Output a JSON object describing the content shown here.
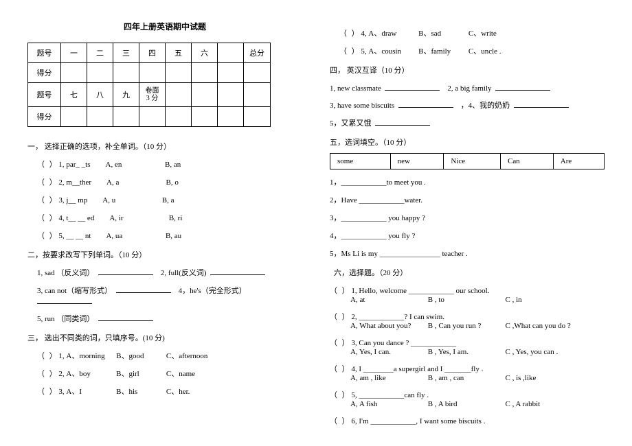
{
  "title": "四年上册英语期中试题",
  "scoreTable": {
    "r1": [
      "题号",
      "一",
      "二",
      "三",
      "四",
      "五",
      "六",
      "",
      "总分"
    ],
    "r2": [
      "得分",
      "",
      "",
      "",
      "",
      "",
      "",
      "",
      ""
    ],
    "r3": [
      "题号",
      "七",
      "八",
      "九",
      "卷面\n3 分",
      "",
      "",
      "",
      ""
    ],
    "r4": [
      "得分",
      "",
      "",
      "",
      "",
      "",
      "",
      "",
      ""
    ]
  },
  "s1": {
    "head": "一，  选择正确的选项，补全单词。（10 分）",
    "items": [
      {
        "n": "1",
        "w": "par_ _ts",
        "a": "A, en",
        "b": "B, an"
      },
      {
        "n": "2",
        "w": "m__ther",
        "a": "A, a",
        "b": "B, o"
      },
      {
        "n": "3",
        "w": "j__ mp",
        "a": "A, u",
        "b": "B, a"
      },
      {
        "n": "4",
        "w": "t__ __ ed",
        "a": "A, ir",
        "b": "B, ri"
      },
      {
        "n": "5",
        "w": "__ __ nt",
        "a": "A, ua",
        "b": "B, au"
      }
    ]
  },
  "s2": {
    "head": "二，按要求改写下列单词。（10 分）",
    "rows": [
      {
        "a": "1,   sad  （反义词）",
        "b": "2, full(反义词)"
      },
      {
        "a": "3,   can not（缩写形式）",
        "b": "4，he's（完全形式）"
      },
      {
        "a": "5,   run （同类词）",
        "b": ""
      }
    ]
  },
  "s3": {
    "head": "三，  选出不同类的词，只填序号。(10 分)",
    "items": [
      {
        "n": "1",
        "a": "A、morning",
        "b": "B、good",
        "c": "C、afternoon"
      },
      {
        "n": "2",
        "a": "A、boy",
        "b": "B、girl",
        "c": "C、name"
      },
      {
        "n": "3",
        "a": "A、I",
        "b": "B、his",
        "c": "C、her."
      },
      {
        "n": "4",
        "a": "A、draw",
        "b": "B、sad",
        "c": "C、write"
      },
      {
        "n": "5",
        "a": "A、cousin",
        "b": "B、family",
        "c": "C、uncle  ."
      }
    ]
  },
  "s4": {
    "head": "四，   英汉互译（10 分）",
    "rows": [
      {
        "a": "1, new classmate",
        "b": "2, a big family"
      },
      {
        "a": "3, have some biscuits",
        "b": "，4、我的奶奶"
      },
      {
        "a": "5，又累又饿",
        "b": ""
      }
    ]
  },
  "s5": {
    "head": "五，选词填空。（10 分）",
    "words": [
      "some",
      "new",
      "Nice",
      "Can",
      "Are"
    ],
    "items": [
      "1，____________to meet you .",
      "2，Have  ____________water.",
      "3，____________ you happy ?",
      "4，____________ you fly ?",
      "5，Ms Li is my  ________________ teacher ."
    ]
  },
  "s6": {
    "head": "六，选择题。（20 分）",
    "q": [
      {
        "n": "1",
        "t": "Hello, welcome  ____________ our school.",
        "a": "A, at",
        "b": "B , to",
        "c": "C , in"
      },
      {
        "n": "2",
        "t": "____________? I can swim.",
        "a": "A, What about you?",
        "b": "B , Can you run ?",
        "c": "C ,What can you do ?"
      },
      {
        "n": "3",
        "t": "Can you dance ? ____________",
        "a": "A, Yes, I can.",
        "b": "B , Yes, I am.",
        "c": "C , Yes, you can ."
      },
      {
        "n": "4",
        "t": "I  ________a supergirl and I  _______fly .",
        "a": "A, am ,  like",
        "b": "B , am , can",
        "c": "C ,  is   ,like"
      },
      {
        "n": "5",
        "t": "____________can fly .",
        "a": "A, A fish",
        "b": "B , A bird",
        "c": "C , A rabbit"
      },
      {
        "n": "6",
        "t": "I'm  ____________, I want some biscuits .",
        "a": "",
        "b": "",
        "c": ""
      }
    ]
  }
}
